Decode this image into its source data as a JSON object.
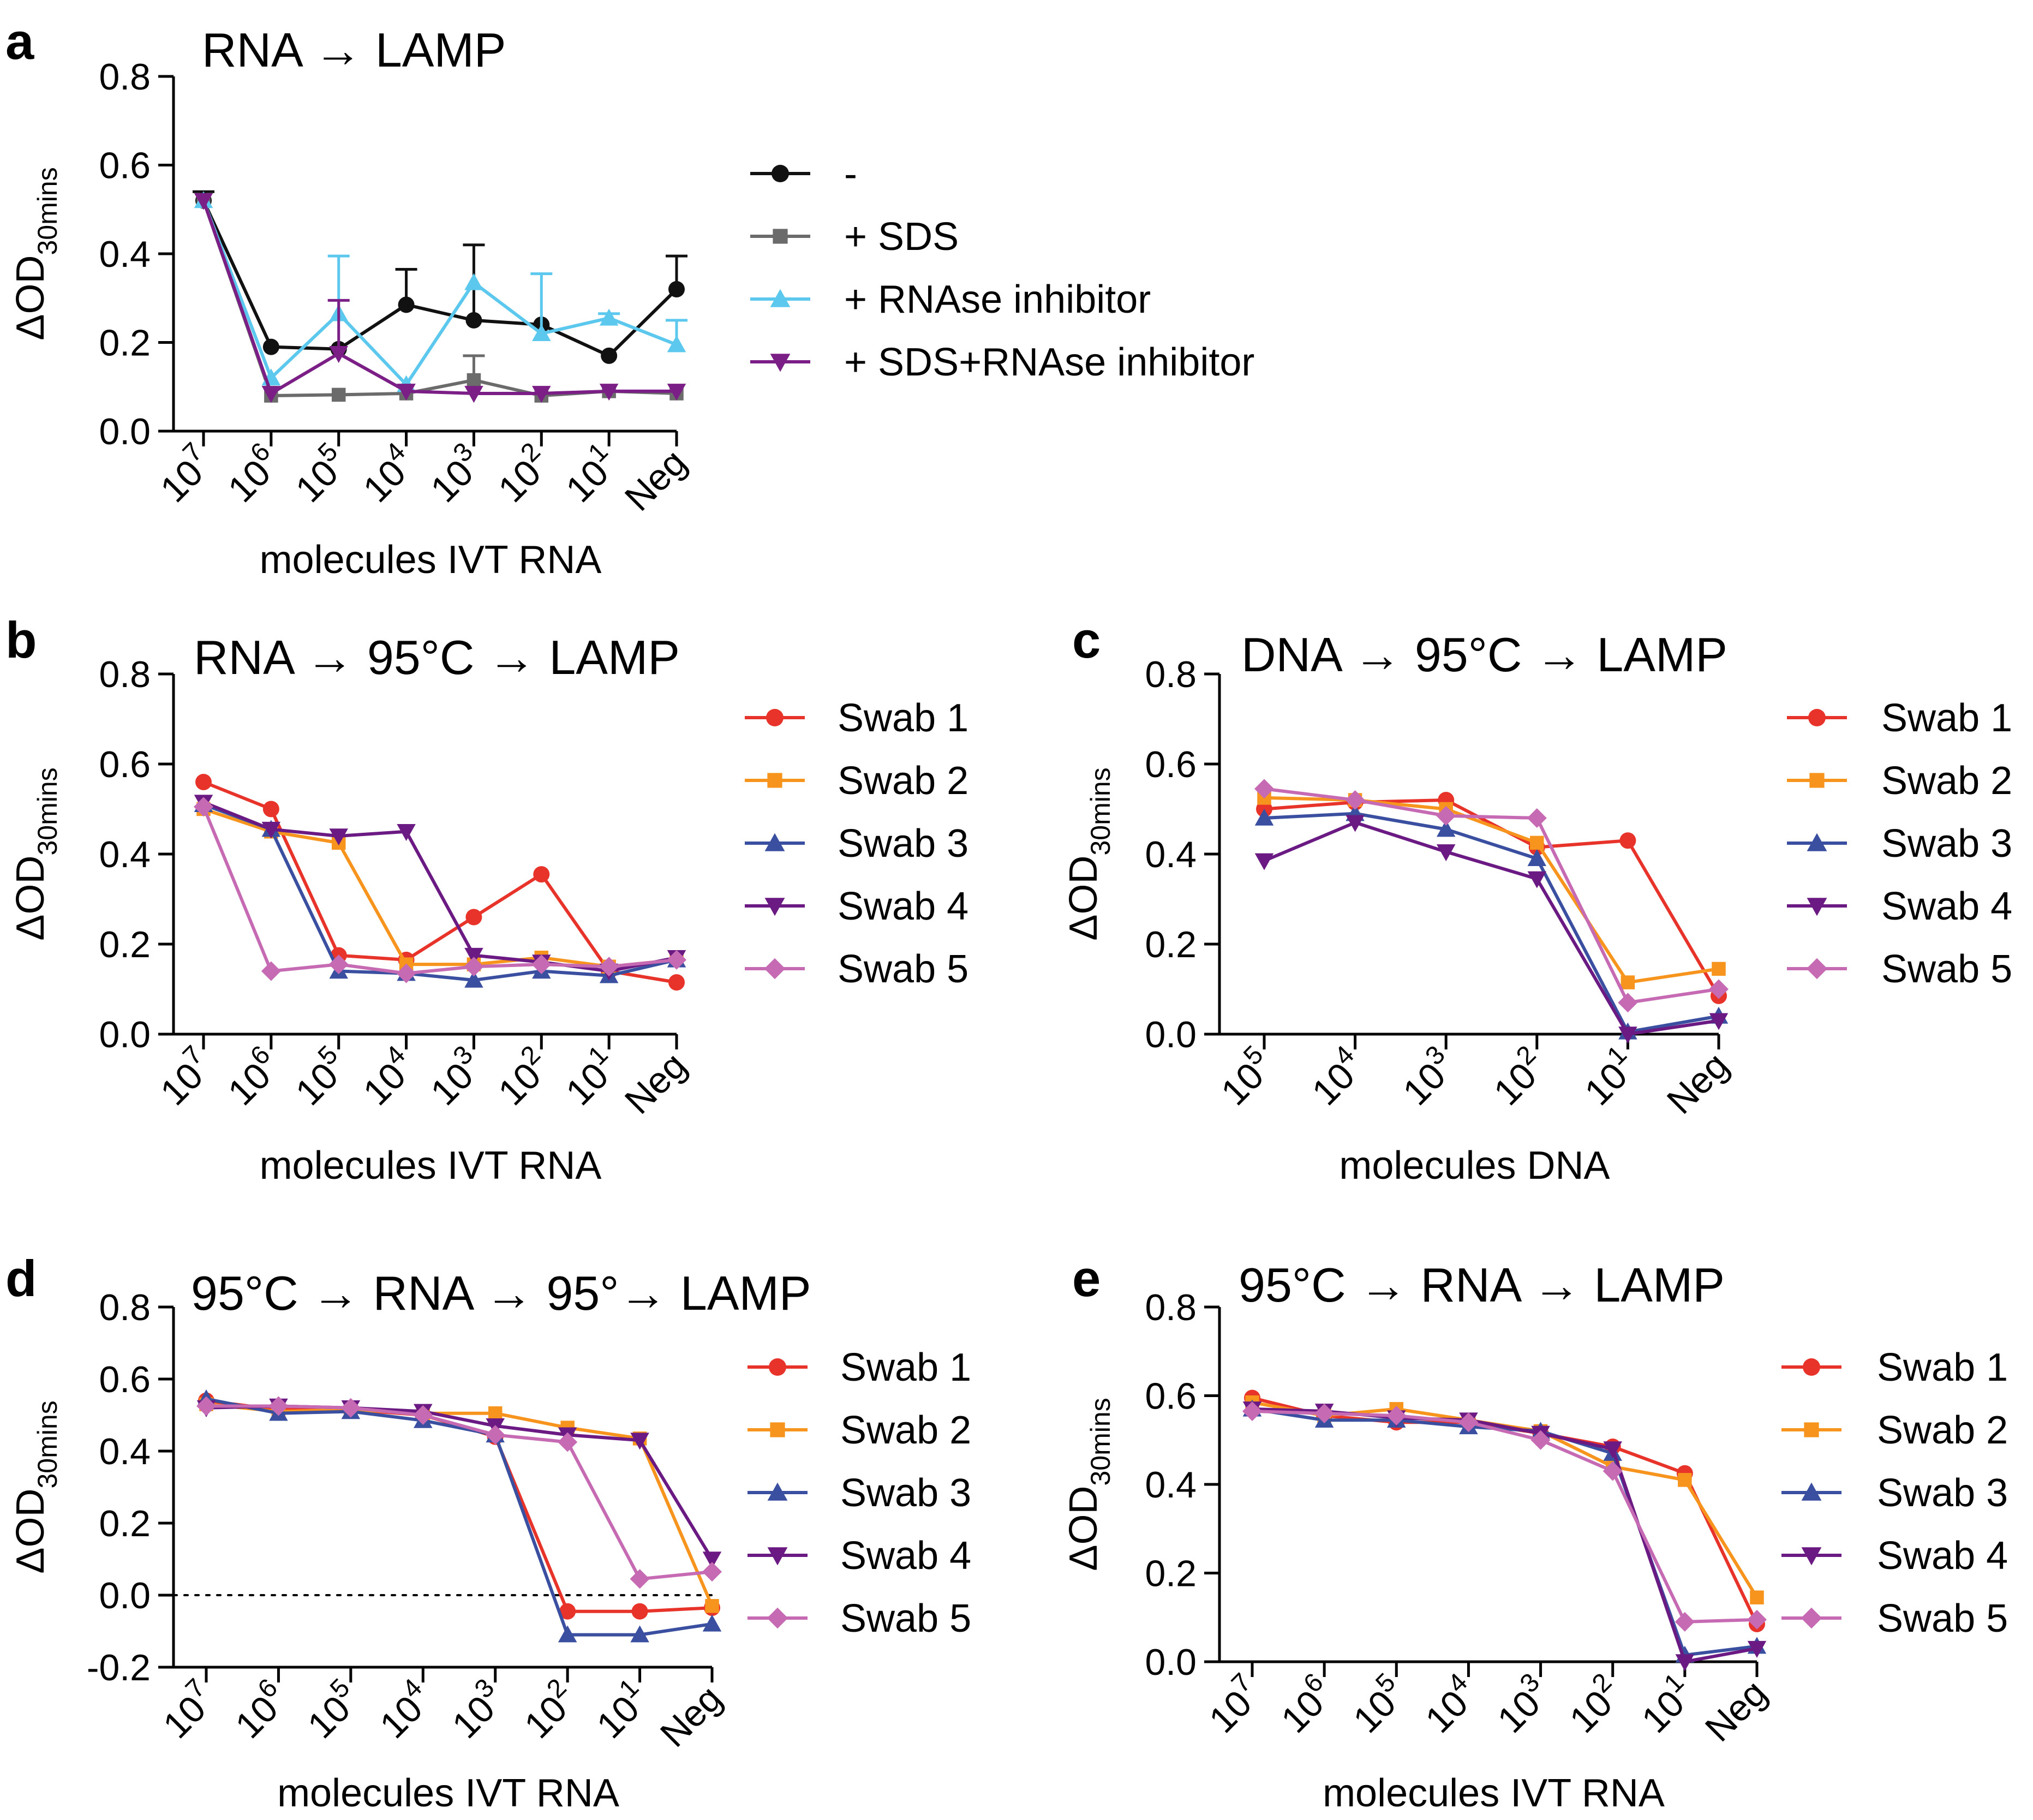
{
  "colors": {
    "black": "#111111",
    "gray": "#6b6b6b",
    "lightblue": "#5cc8ee",
    "purple": "#7b1f86",
    "red": "#e8332a",
    "orange": "#f7941d",
    "blue": "#3a4fa0",
    "darkpurple": "#6a1a82",
    "pink": "#c66bb3"
  },
  "chart_data": [
    {
      "panel": "a",
      "type": "line",
      "title": "RNA → LAMP",
      "xlabel": "molecules IVT RNA",
      "ylabel_main": "ΔOD",
      "ylabel_sub": "30mins",
      "categories": [
        {
          "base": "10",
          "exp": "7"
        },
        {
          "base": "10",
          "exp": "6"
        },
        {
          "base": "10",
          "exp": "5"
        },
        {
          "base": "10",
          "exp": "4"
        },
        {
          "base": "10",
          "exp": "3"
        },
        {
          "base": "10",
          "exp": "2"
        },
        {
          "base": "10",
          "exp": "1"
        },
        {
          "base": "Neg",
          "exp": ""
        }
      ],
      "ylim": [
        0,
        0.8
      ],
      "yticks": [
        "0.0",
        "0.2",
        "0.4",
        "0.6",
        "0.8"
      ],
      "legend_position": "right",
      "series": [
        {
          "name": "-",
          "color": "#111111",
          "marker": "circle",
          "values": [
            0.52,
            0.19,
            0.185,
            0.285,
            0.25,
            0.24,
            0.17,
            0.32
          ],
          "errors": [
            0.02,
            0,
            0,
            0.08,
            0.17,
            0,
            0,
            0.075
          ]
        },
        {
          "name": "+ SDS",
          "color": "#6b6b6b",
          "marker": "square",
          "values": [
            0.52,
            0.08,
            0.082,
            0.085,
            0.115,
            0.08,
            0.09,
            0.085
          ],
          "errors": [
            0,
            0,
            0,
            0,
            0.055,
            0,
            0,
            0
          ]
        },
        {
          "name": "+ RNAse inhibitor",
          "color": "#5cc8ee",
          "marker": "triangle-up",
          "values": [
            0.52,
            0.12,
            0.265,
            0.105,
            0.335,
            0.22,
            0.255,
            0.195
          ],
          "errors": [
            0,
            0,
            0.13,
            0,
            0,
            0.135,
            0.01,
            0.055
          ]
        },
        {
          "name": "+ SDS+RNAse inhibitor",
          "color": "#7b1f86",
          "marker": "triangle-down",
          "values": [
            0.52,
            0.085,
            0.175,
            0.09,
            0.085,
            0.085,
            0.09,
            0.09
          ],
          "errors": [
            0,
            0,
            0.12,
            0,
            0,
            0,
            0,
            0
          ]
        }
      ]
    },
    {
      "panel": "b",
      "type": "line",
      "title": "RNA → 95°C → LAMP",
      "xlabel": "molecules IVT RNA",
      "ylabel_main": "ΔOD",
      "ylabel_sub": "30mins",
      "categories": [
        {
          "base": "10",
          "exp": "7"
        },
        {
          "base": "10",
          "exp": "6"
        },
        {
          "base": "10",
          "exp": "5"
        },
        {
          "base": "10",
          "exp": "4"
        },
        {
          "base": "10",
          "exp": "3"
        },
        {
          "base": "10",
          "exp": "2"
        },
        {
          "base": "10",
          "exp": "1"
        },
        {
          "base": "Neg",
          "exp": ""
        }
      ],
      "ylim": [
        0,
        0.8
      ],
      "yticks": [
        "0.0",
        "0.2",
        "0.4",
        "0.6",
        "0.8"
      ],
      "legend_position": "right",
      "series": [
        {
          "name": "Swab 1",
          "color": "#e8332a",
          "marker": "circle",
          "values": [
            0.56,
            0.5,
            0.175,
            0.165,
            0.26,
            0.355,
            0.14,
            0.115
          ]
        },
        {
          "name": "Swab 2",
          "color": "#f7941d",
          "marker": "square",
          "values": [
            0.5,
            0.45,
            0.425,
            0.155,
            0.155,
            0.17,
            0.15,
            0.165
          ]
        },
        {
          "name": "Swab 3",
          "color": "#3a4fa0",
          "marker": "triangle-up",
          "values": [
            0.51,
            0.455,
            0.14,
            0.135,
            0.12,
            0.14,
            0.13,
            0.165
          ]
        },
        {
          "name": "Swab 4",
          "color": "#6a1a82",
          "marker": "triangle-down",
          "values": [
            0.515,
            0.455,
            0.44,
            0.45,
            0.175,
            0.16,
            0.14,
            0.17
          ]
        },
        {
          "name": "Swab 5",
          "color": "#c66bb3",
          "marker": "diamond",
          "values": [
            0.505,
            0.14,
            0.155,
            0.135,
            0.15,
            0.155,
            0.15,
            0.165
          ]
        }
      ]
    },
    {
      "panel": "c",
      "type": "line",
      "title": "DNA → 95°C → LAMP",
      "xlabel": "molecules DNA",
      "ylabel_main": "ΔOD",
      "ylabel_sub": "30mins",
      "categories": [
        {
          "base": "10",
          "exp": "5"
        },
        {
          "base": "10",
          "exp": "4"
        },
        {
          "base": "10",
          "exp": "3"
        },
        {
          "base": "10",
          "exp": "2"
        },
        {
          "base": "10",
          "exp": "1"
        },
        {
          "base": "Neg",
          "exp": ""
        }
      ],
      "ylim": [
        0,
        0.8
      ],
      "yticks": [
        "0.0",
        "0.2",
        "0.4",
        "0.6",
        "0.8"
      ],
      "legend_position": "right",
      "series": [
        {
          "name": "Swab 1",
          "color": "#e8332a",
          "marker": "circle",
          "values": [
            0.5,
            0.515,
            0.52,
            0.415,
            0.43,
            0.085
          ]
        },
        {
          "name": "Swab 2",
          "color": "#f7941d",
          "marker": "square",
          "values": [
            0.525,
            0.52,
            0.5,
            0.425,
            0.115,
            0.145
          ]
        },
        {
          "name": "Swab 3",
          "color": "#3a4fa0",
          "marker": "triangle-up",
          "values": [
            0.48,
            0.49,
            0.455,
            0.39,
            0.005,
            0.04
          ]
        },
        {
          "name": "Swab 4",
          "color": "#6a1a82",
          "marker": "triangle-down",
          "values": [
            0.385,
            0.47,
            0.405,
            0.345,
            0.0,
            0.03
          ]
        },
        {
          "name": "Swab 5",
          "color": "#c66bb3",
          "marker": "diamond",
          "values": [
            0.545,
            0.52,
            0.485,
            0.48,
            0.07,
            0.1
          ]
        }
      ]
    },
    {
      "panel": "d",
      "type": "line",
      "title": "95°C → RNA → 95°→ LAMP",
      "xlabel": "molecules IVT RNA",
      "ylabel_main": "ΔOD",
      "ylabel_sub": "30mins",
      "categories": [
        {
          "base": "10",
          "exp": "7"
        },
        {
          "base": "10",
          "exp": "6"
        },
        {
          "base": "10",
          "exp": "5"
        },
        {
          "base": "10",
          "exp": "4"
        },
        {
          "base": "10",
          "exp": "3"
        },
        {
          "base": "10",
          "exp": "2"
        },
        {
          "base": "10",
          "exp": "1"
        },
        {
          "base": "Neg",
          "exp": ""
        }
      ],
      "ylim": [
        -0.2,
        0.8
      ],
      "yticks": [
        "-0.2",
        "0.0",
        "0.2",
        "0.4",
        "0.6",
        "0.8"
      ],
      "zero_line": true,
      "legend_position": "right",
      "series": [
        {
          "name": "Swab 1",
          "color": "#e8332a",
          "marker": "circle",
          "values": [
            0.54,
            0.515,
            0.515,
            0.5,
            0.44,
            -0.045,
            -0.045,
            -0.035
          ]
        },
        {
          "name": "Swab 2",
          "color": "#f7941d",
          "marker": "square",
          "values": [
            0.53,
            0.51,
            0.515,
            0.505,
            0.505,
            0.465,
            0.435,
            -0.03
          ]
        },
        {
          "name": "Swab 3",
          "color": "#3a4fa0",
          "marker": "triangle-up",
          "values": [
            0.545,
            0.505,
            0.51,
            0.485,
            0.445,
            -0.11,
            -0.11,
            -0.08
          ]
        },
        {
          "name": "Swab 4",
          "color": "#6a1a82",
          "marker": "triangle-down",
          "values": [
            0.52,
            0.525,
            0.52,
            0.51,
            0.47,
            0.445,
            0.43,
            0.1
          ]
        },
        {
          "name": "Swab 5",
          "color": "#c66bb3",
          "marker": "diamond",
          "values": [
            0.525,
            0.525,
            0.52,
            0.5,
            0.445,
            0.425,
            0.045,
            0.065
          ]
        }
      ]
    },
    {
      "panel": "e",
      "type": "line",
      "title": "95°C → RNA → LAMP",
      "xlabel": "molecules IVT RNA",
      "ylabel_main": "ΔOD",
      "ylabel_sub": "30mins",
      "categories": [
        {
          "base": "10",
          "exp": "7"
        },
        {
          "base": "10",
          "exp": "6"
        },
        {
          "base": "10",
          "exp": "5"
        },
        {
          "base": "10",
          "exp": "4"
        },
        {
          "base": "10",
          "exp": "3"
        },
        {
          "base": "10",
          "exp": "2"
        },
        {
          "base": "10",
          "exp": "1"
        },
        {
          "base": "Neg",
          "exp": ""
        }
      ],
      "ylim": [
        0,
        0.8
      ],
      "yticks": [
        "0.0",
        "0.2",
        "0.4",
        "0.6",
        "0.8"
      ],
      "legend_position": "right",
      "series": [
        {
          "name": "Swab 1",
          "color": "#e8332a",
          "marker": "circle",
          "values": [
            0.595,
            0.555,
            0.54,
            0.54,
            0.515,
            0.485,
            0.425,
            0.085
          ]
        },
        {
          "name": "Swab 2",
          "color": "#f7941d",
          "marker": "square",
          "values": [
            0.585,
            0.555,
            0.57,
            0.545,
            0.52,
            0.44,
            0.41,
            0.145
          ]
        },
        {
          "name": "Swab 3",
          "color": "#3a4fa0",
          "marker": "triangle-up",
          "values": [
            0.57,
            0.545,
            0.545,
            0.53,
            0.52,
            0.47,
            0.015,
            0.035
          ]
        },
        {
          "name": "Swab 4",
          "color": "#6a1a82",
          "marker": "triangle-down",
          "values": [
            0.57,
            0.565,
            0.55,
            0.545,
            0.515,
            0.48,
            0.0,
            0.03
          ]
        },
        {
          "name": "Swab 5",
          "color": "#c66bb3",
          "marker": "diamond",
          "values": [
            0.565,
            0.56,
            0.555,
            0.54,
            0.5,
            0.43,
            0.09,
            0.095
          ]
        }
      ]
    }
  ]
}
